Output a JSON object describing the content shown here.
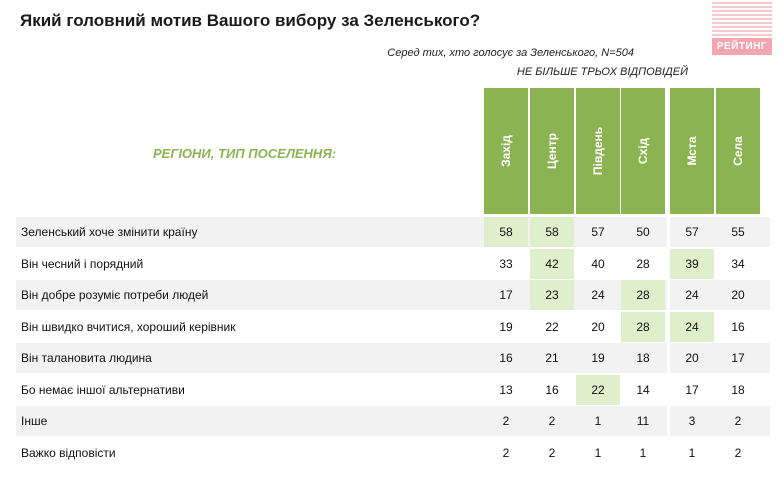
{
  "title": "Який головний мотив Вашого вибору за Зеленського?",
  "logo_text": "РЕЙТИНГ",
  "note_sample": "Серед тих, хто голосує за Зеленського, N=504",
  "note_limit": "НЕ БІЛЬШЕ ТРЬОХ ВІДПОВІДЕЙ",
  "regions_label": "РЕГІОНИ, ТИП ПОСЕЛЕННЯ:",
  "colors": {
    "header_green": "#8cb352",
    "highlight": "#dfeecb",
    "row_shade": "#f2f2f2",
    "logo_pink": "#f4a6b0"
  },
  "chart_data": {
    "type": "table",
    "columns": [
      "Захід",
      "Центр",
      "Південь",
      "Схід",
      "Мста",
      "Села"
    ],
    "rows": [
      {
        "label": "Зеленський хоче змінити країну",
        "values": [
          58,
          58,
          57,
          50,
          57,
          55
        ],
        "highlight": [
          true,
          true,
          false,
          false,
          false,
          false
        ]
      },
      {
        "label": "Він чесний і порядний",
        "values": [
          33,
          42,
          40,
          28,
          39,
          34
        ],
        "highlight": [
          false,
          true,
          false,
          false,
          true,
          false
        ]
      },
      {
        "label": "Він добре розуміє потреби людей",
        "values": [
          17,
          23,
          24,
          28,
          24,
          20
        ],
        "highlight": [
          false,
          true,
          false,
          true,
          false,
          false
        ]
      },
      {
        "label": "Він швидко вчитися, хороший керівник",
        "values": [
          19,
          22,
          20,
          28,
          24,
          16
        ],
        "highlight": [
          false,
          false,
          false,
          true,
          true,
          false
        ]
      },
      {
        "label": "Він талановита людина",
        "values": [
          16,
          21,
          19,
          18,
          20,
          17
        ],
        "highlight": [
          false,
          false,
          false,
          false,
          false,
          false
        ]
      },
      {
        "label": "Бо немає іншої альтернативи",
        "values": [
          13,
          16,
          22,
          14,
          17,
          18
        ],
        "highlight": [
          false,
          false,
          true,
          false,
          false,
          false
        ]
      },
      {
        "label": "Інше",
        "values": [
          2,
          2,
          1,
          11,
          3,
          2
        ],
        "highlight": [
          false,
          false,
          false,
          false,
          false,
          false
        ]
      },
      {
        "label": "Важко відповісти",
        "values": [
          2,
          2,
          1,
          1,
          1,
          2
        ],
        "highlight": [
          false,
          false,
          false,
          false,
          false,
          false
        ]
      }
    ]
  }
}
